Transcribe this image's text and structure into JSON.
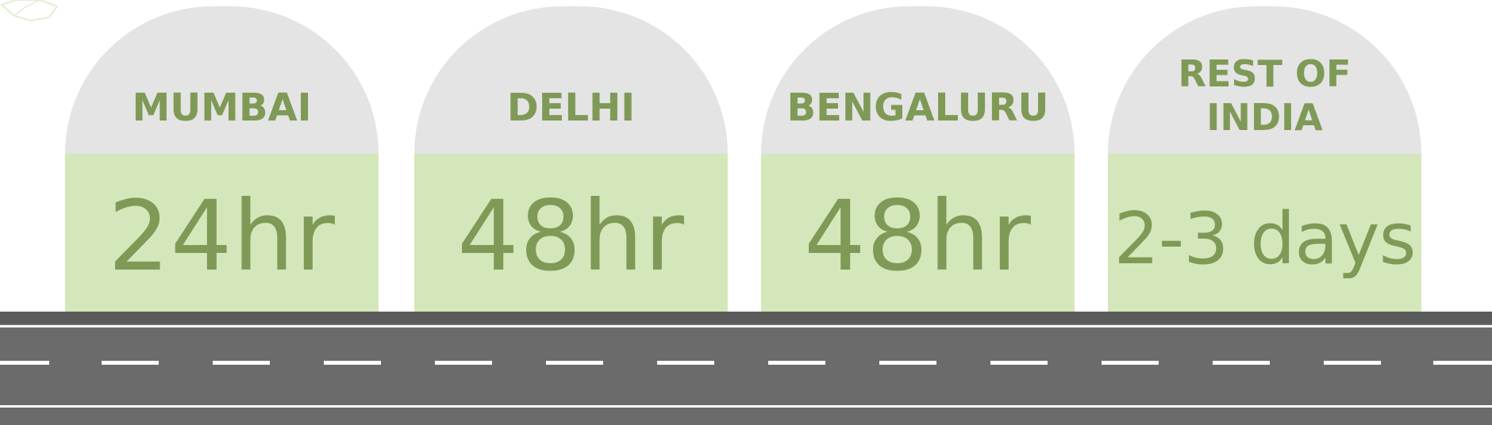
{
  "milestones": [
    {
      "city": "MUMBAI",
      "time": "24hr"
    },
    {
      "city": "DELHI",
      "time": "48hr"
    },
    {
      "city": "BENGALURU",
      "time": "48hr"
    },
    {
      "city": "REST OF\nINDIA",
      "time": "2-3 days"
    }
  ],
  "colors": {
    "stone_top": "#e4e4e4",
    "stone_bottom": "#d4e7bb",
    "text_green": "#7f9a56",
    "road": "#6b6b6b",
    "curb": "#5a5a5a",
    "lane_marking": "#ffffff"
  }
}
